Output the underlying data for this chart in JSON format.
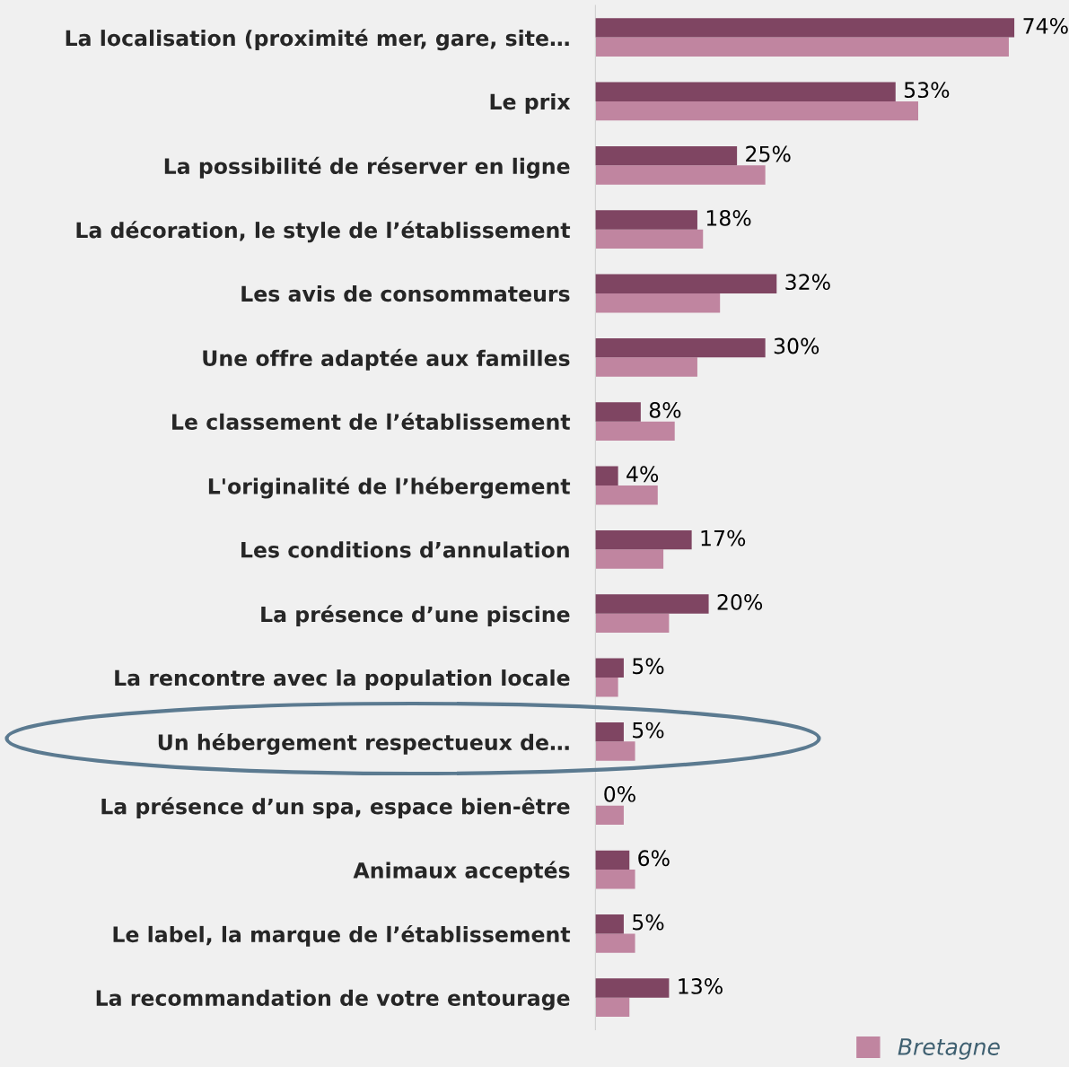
{
  "chart_data": {
    "type": "bar",
    "orientation": "horizontal",
    "categories": [
      "La localisation (proximité mer, gare, site…",
      "Le prix",
      "La possibilité de réserver en ligne",
      "La décoration, le style de l’établissement",
      "Les avis de consommateurs",
      "Une offre adaptée aux familles",
      "Le classement de l’établissement",
      "L'originalité de l’hébergement",
      "Les conditions d’annulation",
      "La présence d’une piscine",
      "La rencontre avec la population locale",
      "Un hébergement respectueux de…",
      "La présence d’un spa, espace bien-être",
      "Animaux acceptés",
      "Le label, la marque de l’établissement",
      "La recommandation de votre entourage"
    ],
    "series": [
      {
        "color": "#7f4562",
        "values": [
          74,
          53,
          25,
          18,
          32,
          30,
          8,
          4,
          17,
          20,
          5,
          5,
          0,
          6,
          5,
          13
        ],
        "value_labels": [
          "74%",
          "53%",
          "25%",
          "18%",
          "32%",
          "30%",
          "8%",
          "4%",
          "17%",
          "20%",
          "5%",
          "5%",
          "0%",
          "6%",
          "5%",
          "13%"
        ]
      },
      {
        "name": "Bretagne",
        "color": "#c085a0",
        "values": [
          73,
          57,
          30,
          19,
          22,
          18,
          14,
          11,
          12,
          13,
          4,
          7,
          5,
          7,
          7,
          6
        ]
      }
    ],
    "tick_labels": "y",
    "grid": false,
    "legend": "bottom right"
  }
}
